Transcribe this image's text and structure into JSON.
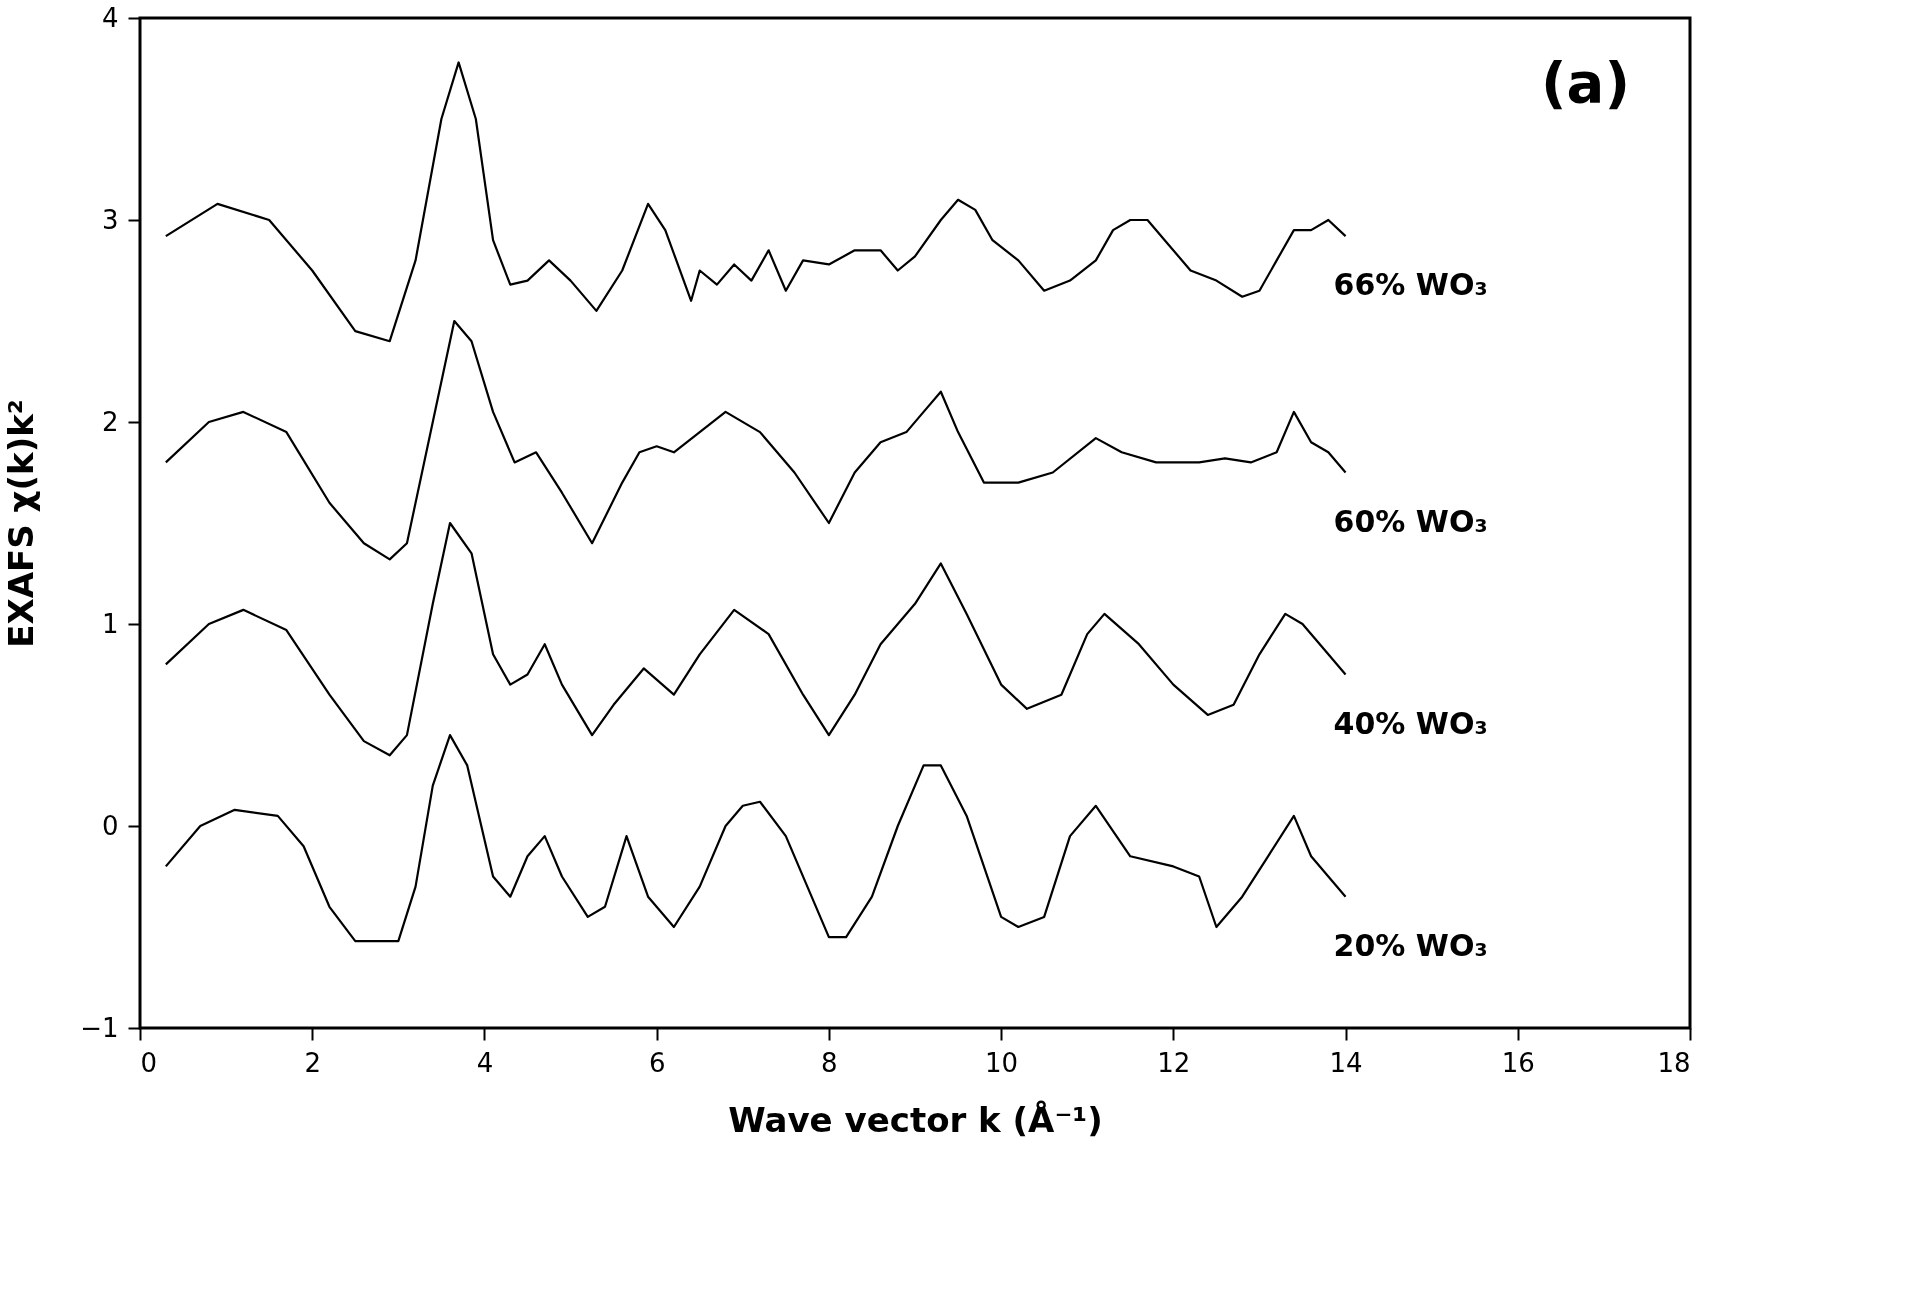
{
  "chart_data": {
    "type": "line",
    "xlabel": "Wave vector k (Å⁻¹)",
    "ylabel": "EXAFS  χ(k)k²",
    "annotations": [
      "(a)"
    ],
    "xlim": [
      0,
      18
    ],
    "xticks": [
      0,
      2,
      4,
      6,
      8,
      10,
      12,
      14,
      16,
      18
    ],
    "ylim": [
      -1,
      4
    ],
    "yticks": [
      -1,
      0,
      1,
      2,
      3,
      4
    ],
    "grid": false,
    "legend": false,
    "marker": "none",
    "line_style": "solid",
    "series": [
      {
        "name": "66% WO₃",
        "color": "#000000",
        "x": [
          0.3,
          0.9,
          1.5,
          2.0,
          2.5,
          2.9,
          3.2,
          3.5,
          3.7,
          3.9,
          4.1,
          4.3,
          4.5,
          4.75,
          5.0,
          5.3,
          5.6,
          5.9,
          6.1,
          6.4,
          6.5,
          6.7,
          6.9,
          7.1,
          7.3,
          7.5,
          7.7,
          8.0,
          8.3,
          8.6,
          8.8,
          9.0,
          9.3,
          9.5,
          9.7,
          9.9,
          10.2,
          10.5,
          10.8,
          11.1,
          11.3,
          11.5,
          11.7,
          11.9,
          12.2,
          12.5,
          12.8,
          13.0,
          13.2,
          13.4,
          13.6,
          13.8,
          14.0
        ],
        "values": [
          2.92,
          3.08,
          3.0,
          2.75,
          2.45,
          2.4,
          2.8,
          3.5,
          3.78,
          3.5,
          2.9,
          2.68,
          2.7,
          2.8,
          2.7,
          2.55,
          2.75,
          3.08,
          2.95,
          2.6,
          2.75,
          2.68,
          2.78,
          2.7,
          2.85,
          2.65,
          2.8,
          2.78,
          2.85,
          2.85,
          2.75,
          2.82,
          3.0,
          3.1,
          3.05,
          2.9,
          2.8,
          2.65,
          2.7,
          2.8,
          2.95,
          3.0,
          3.0,
          2.9,
          2.75,
          2.7,
          2.62,
          2.65,
          2.8,
          2.95,
          2.95,
          3.0,
          2.92
        ]
      },
      {
        "name": "60% WO₃",
        "color": "#000000",
        "x": [
          0.3,
          0.8,
          1.2,
          1.7,
          2.2,
          2.6,
          2.9,
          3.1,
          3.4,
          3.65,
          3.85,
          4.1,
          4.35,
          4.6,
          4.9,
          5.25,
          5.6,
          5.8,
          6.0,
          6.2,
          6.5,
          6.8,
          7.2,
          7.6,
          8.0,
          8.3,
          8.6,
          8.9,
          9.1,
          9.3,
          9.5,
          9.8,
          10.2,
          10.6,
          11.1,
          11.4,
          11.8,
          12.3,
          12.6,
          12.9,
          13.2,
          13.4,
          13.6,
          13.8,
          14.0
        ],
        "values": [
          1.8,
          2.0,
          2.05,
          1.95,
          1.6,
          1.4,
          1.32,
          1.4,
          2.0,
          2.5,
          2.4,
          2.05,
          1.8,
          1.85,
          1.65,
          1.4,
          1.7,
          1.85,
          1.88,
          1.85,
          1.95,
          2.05,
          1.95,
          1.75,
          1.5,
          1.75,
          1.9,
          1.95,
          2.05,
          2.15,
          1.95,
          1.7,
          1.7,
          1.75,
          1.92,
          1.85,
          1.8,
          1.8,
          1.82,
          1.8,
          1.85,
          2.05,
          1.9,
          1.85,
          1.75
        ]
      },
      {
        "name": "40% WO₃",
        "color": "#000000",
        "x": [
          0.3,
          0.8,
          1.2,
          1.7,
          2.2,
          2.6,
          2.9,
          3.1,
          3.4,
          3.6,
          3.85,
          4.1,
          4.3,
          4.5,
          4.7,
          4.9,
          5.25,
          5.5,
          5.85,
          6.2,
          6.5,
          6.9,
          7.3,
          7.7,
          8.0,
          8.3,
          8.6,
          9.0,
          9.3,
          9.6,
          10.0,
          10.3,
          10.7,
          11.0,
          11.2,
          11.6,
          12.0,
          12.4,
          12.7,
          13.0,
          13.3,
          13.5,
          13.8,
          14.0
        ],
        "values": [
          0.8,
          1.0,
          1.07,
          0.97,
          0.65,
          0.42,
          0.35,
          0.45,
          1.1,
          1.5,
          1.35,
          0.85,
          0.7,
          0.75,
          0.9,
          0.7,
          0.45,
          0.6,
          0.78,
          0.65,
          0.85,
          1.07,
          0.95,
          0.65,
          0.45,
          0.65,
          0.9,
          1.1,
          1.3,
          1.05,
          0.7,
          0.58,
          0.65,
          0.95,
          1.05,
          0.9,
          0.7,
          0.55,
          0.6,
          0.85,
          1.05,
          1.0,
          0.85,
          0.75
        ]
      },
      {
        "name": "20% WO₃",
        "color": "#000000",
        "x": [
          0.3,
          0.7,
          1.1,
          1.6,
          1.9,
          2.2,
          2.5,
          3.0,
          3.2,
          3.4,
          3.6,
          3.8,
          4.1,
          4.3,
          4.5,
          4.7,
          4.9,
          5.2,
          5.4,
          5.65,
          5.9,
          6.2,
          6.5,
          6.8,
          7.0,
          7.2,
          7.5,
          8.0,
          8.2,
          8.5,
          8.8,
          9.1,
          9.3,
          9.6,
          10.0,
          10.2,
          10.5,
          10.8,
          11.1,
          11.5,
          12.0,
          12.3,
          12.5,
          12.8,
          13.1,
          13.4,
          13.6,
          13.8,
          14.0
        ],
        "values": [
          -0.2,
          0.0,
          0.08,
          0.05,
          -0.1,
          -0.4,
          -0.57,
          -0.57,
          -0.3,
          0.2,
          0.45,
          0.3,
          -0.25,
          -0.35,
          -0.15,
          -0.05,
          -0.25,
          -0.45,
          -0.4,
          -0.05,
          -0.35,
          -0.5,
          -0.3,
          0.0,
          0.1,
          0.12,
          -0.05,
          -0.55,
          -0.55,
          -0.35,
          0.0,
          0.3,
          0.3,
          0.05,
          -0.45,
          -0.5,
          -0.45,
          -0.05,
          0.1,
          -0.15,
          -0.2,
          -0.25,
          -0.5,
          -0.35,
          -0.15,
          0.05,
          -0.15,
          -0.25,
          -0.35
        ]
      }
    ]
  }
}
